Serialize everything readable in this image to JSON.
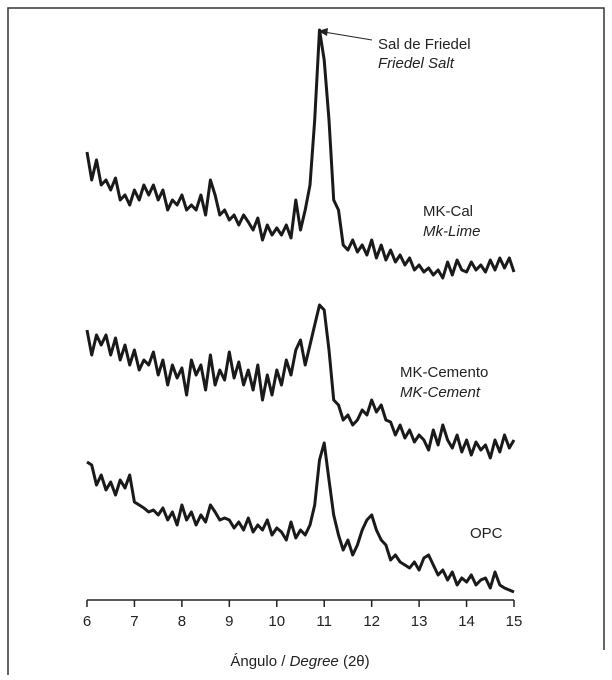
{
  "chart_data": {
    "type": "line",
    "xlabel": [
      "Ángulo / ",
      "Degree",
      " (2θ)"
    ],
    "annotation": [
      "Sal de Friedel",
      "Friedel Salt"
    ],
    "x": [
      6.0,
      6.1,
      6.2,
      6.3,
      6.4,
      6.5,
      6.6,
      6.7,
      6.8,
      6.9,
      7.0,
      7.1,
      7.2,
      7.3,
      7.4,
      7.5,
      7.6,
      7.7,
      7.8,
      7.9,
      8.0,
      8.1,
      8.2,
      8.3,
      8.4,
      8.5,
      8.6,
      8.7,
      8.8,
      8.9,
      9.0,
      9.1,
      9.2,
      9.3,
      9.4,
      9.5,
      9.6,
      9.7,
      9.8,
      9.9,
      10.0,
      10.1,
      10.2,
      10.3,
      10.4,
      10.5,
      10.6,
      10.7,
      10.8,
      10.9,
      11.0,
      11.1,
      11.2,
      11.3,
      11.4,
      11.5,
      11.6,
      11.7,
      11.8,
      11.9,
      12.0,
      12.1,
      12.2,
      12.3,
      12.4,
      12.5,
      12.6,
      12.7,
      12.8,
      12.9,
      13.0,
      13.1,
      13.2,
      13.3,
      13.4,
      13.5,
      13.6,
      13.7,
      13.8,
      13.9,
      14.0,
      14.1,
      14.2,
      14.3,
      14.4,
      14.5,
      14.6,
      14.7,
      14.8,
      14.9,
      15.0
    ],
    "series": [
      {
        "name": "MK-Cal",
        "name_italic": "Mk-Lime",
        "color": "#1a1a1a",
        "values": [
          448,
          420,
          440,
          415,
          420,
          410,
          422,
          400,
          405,
          395,
          410,
          400,
          415,
          405,
          415,
          400,
          410,
          390,
          400,
          395,
          405,
          390,
          395,
          390,
          405,
          385,
          420,
          405,
          385,
          390,
          380,
          385,
          375,
          385,
          378,
          370,
          382,
          360,
          375,
          365,
          372,
          365,
          375,
          362,
          400,
          370,
          390,
          415,
          480,
          570,
          540,
          480,
          400,
          390,
          355,
          350,
          360,
          348,
          355,
          345,
          360,
          342,
          355,
          340,
          350,
          338,
          345,
          335,
          342,
          330,
          335,
          328,
          332,
          325,
          330,
          322,
          338,
          325,
          340,
          330,
          328,
          338,
          330,
          335,
          328,
          340,
          330,
          342,
          332,
          342,
          328
        ]
      },
      {
        "name": "MK-Cemento",
        "name_italic": "MK-Cement",
        "color": "#1a1a1a",
        "values": [
          270,
          245,
          265,
          255,
          265,
          245,
          262,
          240,
          255,
          235,
          250,
          230,
          240,
          235,
          248,
          225,
          240,
          215,
          235,
          222,
          232,
          205,
          240,
          225,
          235,
          210,
          245,
          215,
          230,
          220,
          248,
          222,
          238,
          215,
          230,
          210,
          235,
          200,
          225,
          205,
          230,
          215,
          240,
          225,
          250,
          260,
          235,
          255,
          275,
          295,
          290,
          250,
          200,
          195,
          180,
          185,
          175,
          180,
          190,
          185,
          200,
          188,
          195,
          180,
          178,
          165,
          175,
          162,
          170,
          158,
          165,
          160,
          150,
          170,
          155,
          175,
          160,
          152,
          165,
          148,
          160,
          145,
          158,
          150,
          155,
          142,
          160,
          148,
          165,
          152,
          160
        ]
      },
      {
        "name": "OPC",
        "color": "#1a1a1a",
        "values": [
          138,
          135,
          115,
          125,
          110,
          118,
          105,
          120,
          112,
          125,
          98,
          95,
          92,
          88,
          90,
          85,
          92,
          80,
          88,
          75,
          95,
          80,
          88,
          75,
          85,
          78,
          95,
          88,
          80,
          82,
          80,
          72,
          78,
          70,
          82,
          68,
          75,
          70,
          80,
          65,
          72,
          68,
          60,
          78,
          62,
          70,
          65,
          75,
          95,
          140,
          157,
          120,
          85,
          65,
          50,
          60,
          45,
          55,
          70,
          80,
          85,
          70,
          60,
          55,
          40,
          45,
          38,
          35,
          32,
          38,
          30,
          42,
          45,
          35,
          25,
          30,
          20,
          28,
          15,
          22,
          18,
          25,
          15,
          20,
          22,
          12,
          28,
          15,
          12,
          10,
          8
        ]
      }
    ],
    "xlim": [
      6,
      15
    ],
    "xticks": [
      6,
      7,
      8,
      9,
      10,
      11,
      12,
      13,
      14,
      15
    ],
    "ylim": [
      0,
      600
    ]
  }
}
